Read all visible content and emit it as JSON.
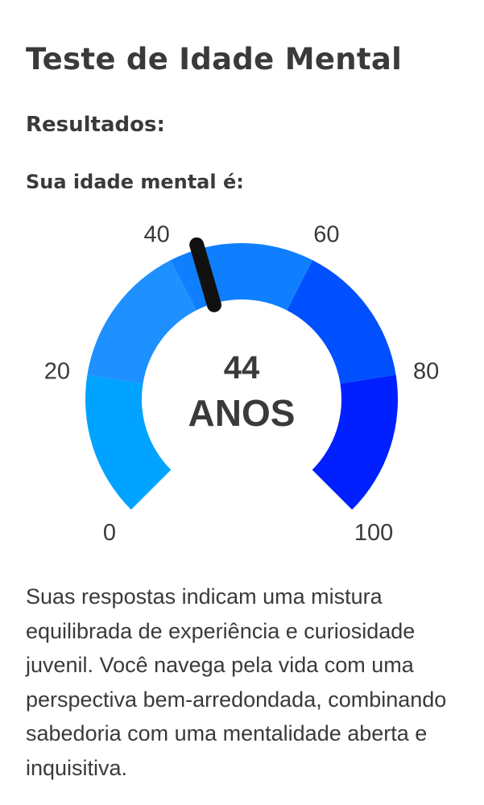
{
  "page": {
    "title": "Teste de Idade Mental",
    "results_heading": "Resultados:",
    "result_label": "Sua idade mental é:",
    "description": "Suas respostas indicam uma mistura equilibrada de experiência e curiosidade juvenil. Você navega pela vida com uma perspectiva bem-arredondada, combinando sabedoria com uma mentalidade aberta e inquisitiva."
  },
  "gauge": {
    "value": 44,
    "value_text": "44",
    "unit_text": "ANOS",
    "min": 0,
    "max": 100,
    "tick_labels": [
      "0",
      "20",
      "40",
      "60",
      "80",
      "100"
    ],
    "segment_colors": [
      "#00a3ff",
      "#1e90ff",
      "#0f7fff",
      "#0050ff",
      "#0020ff"
    ],
    "needle_color": "#111111",
    "text_color": "#3a3a3a"
  }
}
